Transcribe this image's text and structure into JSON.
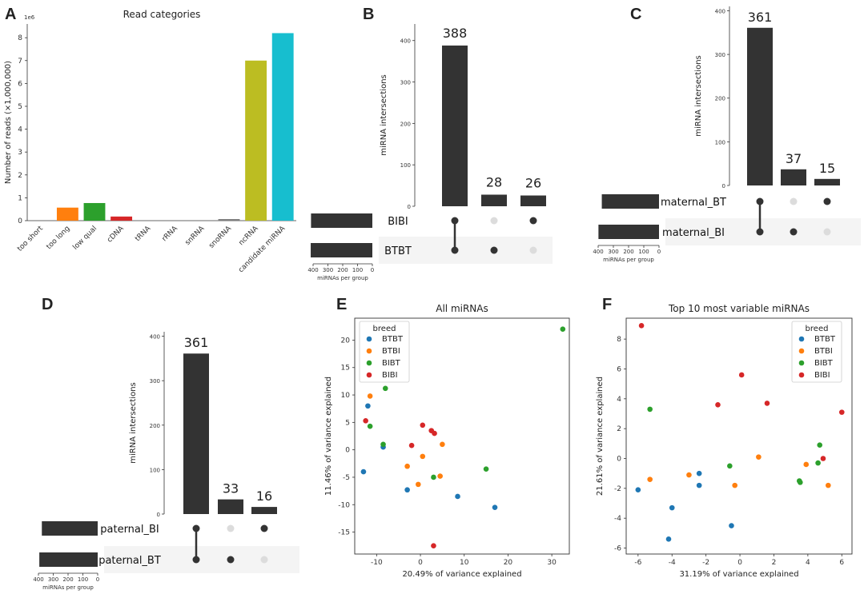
{
  "panels": {
    "A": "A",
    "B": "B",
    "C": "C",
    "D": "D",
    "E": "E",
    "F": "F"
  },
  "chart_data": [
    {
      "id": "A",
      "type": "bar",
      "title": "Read categories",
      "ylabel": "Number of reads (×1,000,000)",
      "scale_note": "1e6",
      "categories": [
        "too short",
        "too long",
        "low qual",
        "cDNA",
        "tRNA",
        "rRNA",
        "snRNA",
        "snoRNA",
        "ncRNA",
        "candidate miRNA"
      ],
      "values": [
        0.0,
        0.57,
        0.77,
        0.18,
        0.0,
        0.0,
        0.0,
        0.07,
        7.0,
        8.2
      ],
      "colors": [
        "#1f77b4",
        "#ff7f0e",
        "#2ca02c",
        "#d62728",
        "#9467bd",
        "#8c564b",
        "#e377c2",
        "#7f7f7f",
        "#bcbd22",
        "#17becf"
      ],
      "ylim": [
        0,
        8.6
      ],
      "yticks": [
        0,
        1,
        2,
        3,
        4,
        5,
        6,
        7,
        8
      ]
    },
    {
      "id": "B",
      "type": "upset",
      "ylabel": "miRNA intersections",
      "xlabel_sets": "miRNAs per group",
      "intersections": [
        388,
        28,
        26
      ],
      "sets": [
        "BIBI",
        "BTBT"
      ],
      "set_sizes": [
        414,
        416
      ],
      "membership": [
        [
          true,
          true
        ],
        [
          false,
          true
        ],
        [
          true,
          false
        ]
      ],
      "ylim": [
        0,
        440
      ],
      "yticks": [
        0,
        100,
        200,
        300,
        400
      ],
      "set_ticks": [
        400,
        300,
        200,
        100,
        0
      ]
    },
    {
      "id": "C",
      "type": "upset",
      "ylabel": "miRNA intersections",
      "xlabel_sets": "miRNAs per group",
      "intersections": [
        361,
        37,
        15
      ],
      "sets": [
        "maternal_BT",
        "maternal_BI"
      ],
      "set_sizes": [
        376,
        398
      ],
      "membership": [
        [
          true,
          true
        ],
        [
          false,
          true
        ],
        [
          true,
          false
        ]
      ],
      "ylim": [
        0,
        410
      ],
      "yticks": [
        0,
        100,
        200,
        300,
        400
      ],
      "set_ticks": [
        400,
        300,
        200,
        100,
        0
      ]
    },
    {
      "id": "D",
      "type": "upset",
      "ylabel": "miRNA intersections",
      "xlabel_sets": "miRNAs per group",
      "intersections": [
        361,
        33,
        16
      ],
      "sets": [
        "paternal_BI",
        "paternal_BT"
      ],
      "set_sizes": [
        377,
        394
      ],
      "membership": [
        [
          true,
          true
        ],
        [
          false,
          true
        ],
        [
          true,
          false
        ]
      ],
      "ylim": [
        0,
        410
      ],
      "yticks": [
        0,
        100,
        200,
        300,
        400
      ],
      "set_ticks": [
        400,
        300,
        200,
        100,
        0
      ]
    },
    {
      "id": "E",
      "type": "scatter",
      "title": "All miRNAs",
      "xlabel": "20.49% of variance explained",
      "ylabel": "11.46% of variance explained",
      "xlim": [
        -15,
        34
      ],
      "ylim": [
        -19,
        24
      ],
      "xticks": [
        -10,
        0,
        10,
        20,
        30
      ],
      "yticks": [
        -15,
        -10,
        -5,
        0,
        5,
        10,
        15,
        20
      ],
      "legend_title": "breed",
      "series": [
        {
          "name": "BTBT",
          "color": "#1f77b4",
          "points": [
            [
              -13,
              -4
            ],
            [
              -12,
              8
            ],
            [
              -8.5,
              0.5
            ],
            [
              -3,
              -7.3
            ],
            [
              8.5,
              -8.5
            ],
            [
              17,
              -10.5
            ]
          ]
        },
        {
          "name": "BTBI",
          "color": "#ff7f0e",
          "points": [
            [
              -11.5,
              9.8
            ],
            [
              -3,
              -3
            ],
            [
              -0.5,
              -6.3
            ],
            [
              0.5,
              -1.2
            ],
            [
              4.5,
              -4.8
            ],
            [
              5,
              1
            ]
          ]
        },
        {
          "name": "BIBT",
          "color": "#2ca02c",
          "points": [
            [
              -11.5,
              4.3
            ],
            [
              -8.5,
              1
            ],
            [
              -8,
              11.2
            ],
            [
              3,
              -5
            ],
            [
              15,
              -3.5
            ],
            [
              32.5,
              22
            ]
          ]
        },
        {
          "name": "BIBI",
          "color": "#d62728",
          "points": [
            [
              -12.5,
              5.3
            ],
            [
              -2,
              0.8
            ],
            [
              0.5,
              4.5
            ],
            [
              2.5,
              3.5
            ],
            [
              3.2,
              3
            ],
            [
              3,
              -17.5
            ]
          ]
        }
      ]
    },
    {
      "id": "F",
      "type": "scatter",
      "title": "Top 10 most variable miRNAs",
      "xlabel": "31.19% of variance explained",
      "ylabel": "21.61% of variance explained",
      "xlim": [
        -6.7,
        6.6
      ],
      "ylim": [
        -6.4,
        9.4
      ],
      "xticks": [
        -6,
        -4,
        -2,
        0,
        2,
        4,
        6
      ],
      "yticks": [
        -6,
        -4,
        -2,
        0,
        2,
        4,
        6,
        8
      ],
      "legend_title": "breed",
      "series": [
        {
          "name": "BTBT",
          "color": "#1f77b4",
          "points": [
            [
              -6,
              -2.1
            ],
            [
              -4,
              -3.3
            ],
            [
              -4.2,
              -5.4
            ],
            [
              -2.4,
              -1
            ],
            [
              -2.4,
              -1.8
            ],
            [
              -0.5,
              -4.5
            ]
          ]
        },
        {
          "name": "BTBI",
          "color": "#ff7f0e",
          "points": [
            [
              -5.3,
              -1.4
            ],
            [
              -3,
              -1.1
            ],
            [
              -0.3,
              -1.8
            ],
            [
              1.1,
              0.1
            ],
            [
              3.9,
              -0.4
            ],
            [
              5.2,
              -1.8
            ]
          ]
        },
        {
          "name": "BIBT",
          "color": "#2ca02c",
          "points": [
            [
              -5.3,
              3.3
            ],
            [
              -0.6,
              -0.5
            ],
            [
              3.5,
              -1.5
            ],
            [
              3.55,
              -1.6
            ],
            [
              4.6,
              -0.3
            ],
            [
              4.7,
              0.9
            ]
          ]
        },
        {
          "name": "BIBI",
          "color": "#d62728",
          "points": [
            [
              -5.8,
              8.9
            ],
            [
              -1.3,
              3.6
            ],
            [
              0.1,
              5.6
            ],
            [
              1.6,
              3.7
            ],
            [
              4.9,
              0
            ],
            [
              6,
              3.1
            ]
          ]
        }
      ]
    }
  ]
}
